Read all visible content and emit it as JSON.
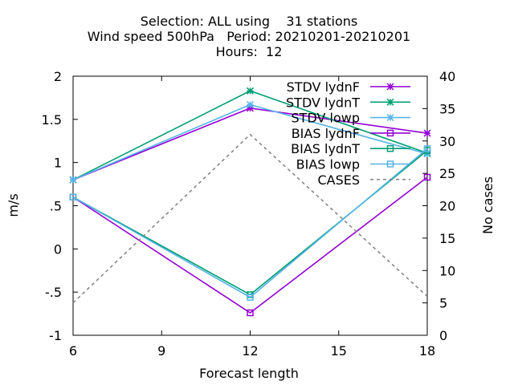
{
  "chart_data": {
    "type": "line",
    "title_lines": [
      "Selection: ALL using    31 stations",
      "Wind speed 500hPa   Period: 20210201-20210201",
      "Hours:  12"
    ],
    "xlabel": "Forecast length",
    "ylabel": "m/s",
    "y2label": "No cases",
    "x": [
      6,
      12,
      18
    ],
    "xlim": [
      6,
      18
    ],
    "xticks": [
      6,
      9,
      12,
      15,
      18
    ],
    "ylim": [
      -1,
      2
    ],
    "yticks": [
      -1,
      -0.5,
      0,
      0.5,
      1,
      1.5,
      2
    ],
    "y2lim": [
      0,
      40
    ],
    "y2ticks": [
      0,
      5,
      10,
      15,
      20,
      25,
      30,
      35,
      40
    ],
    "legend_position": "top-right",
    "series": [
      {
        "name": "STDV lydnF",
        "axis": "y",
        "marker": "star",
        "color": "#9400d3",
        "values": [
          0.8,
          1.63,
          1.34
        ]
      },
      {
        "name": "STDV lydnT",
        "axis": "y",
        "marker": "star",
        "color": "#009e73",
        "values": [
          0.8,
          1.83,
          1.11
        ]
      },
      {
        "name": "STDV lowp",
        "axis": "y",
        "marker": "star",
        "color": "#56b4e9",
        "values": [
          0.8,
          1.67,
          1.1
        ]
      },
      {
        "name": "BIAS lydnF",
        "axis": "y",
        "marker": "square",
        "color": "#9400d3",
        "values": [
          0.6,
          -0.74,
          0.83
        ]
      },
      {
        "name": "BIAS lydnT",
        "axis": "y",
        "marker": "square",
        "color": "#009e73",
        "values": [
          0.6,
          -0.53,
          1.14
        ]
      },
      {
        "name": "BIAS lowp",
        "axis": "y",
        "marker": "square",
        "color": "#56b4e9",
        "values": [
          0.6,
          -0.56,
          1.16
        ]
      },
      {
        "name": "CASES",
        "axis": "y2",
        "marker": "none",
        "dashed": true,
        "color": "#808080",
        "values": [
          5,
          31,
          6
        ]
      }
    ]
  }
}
